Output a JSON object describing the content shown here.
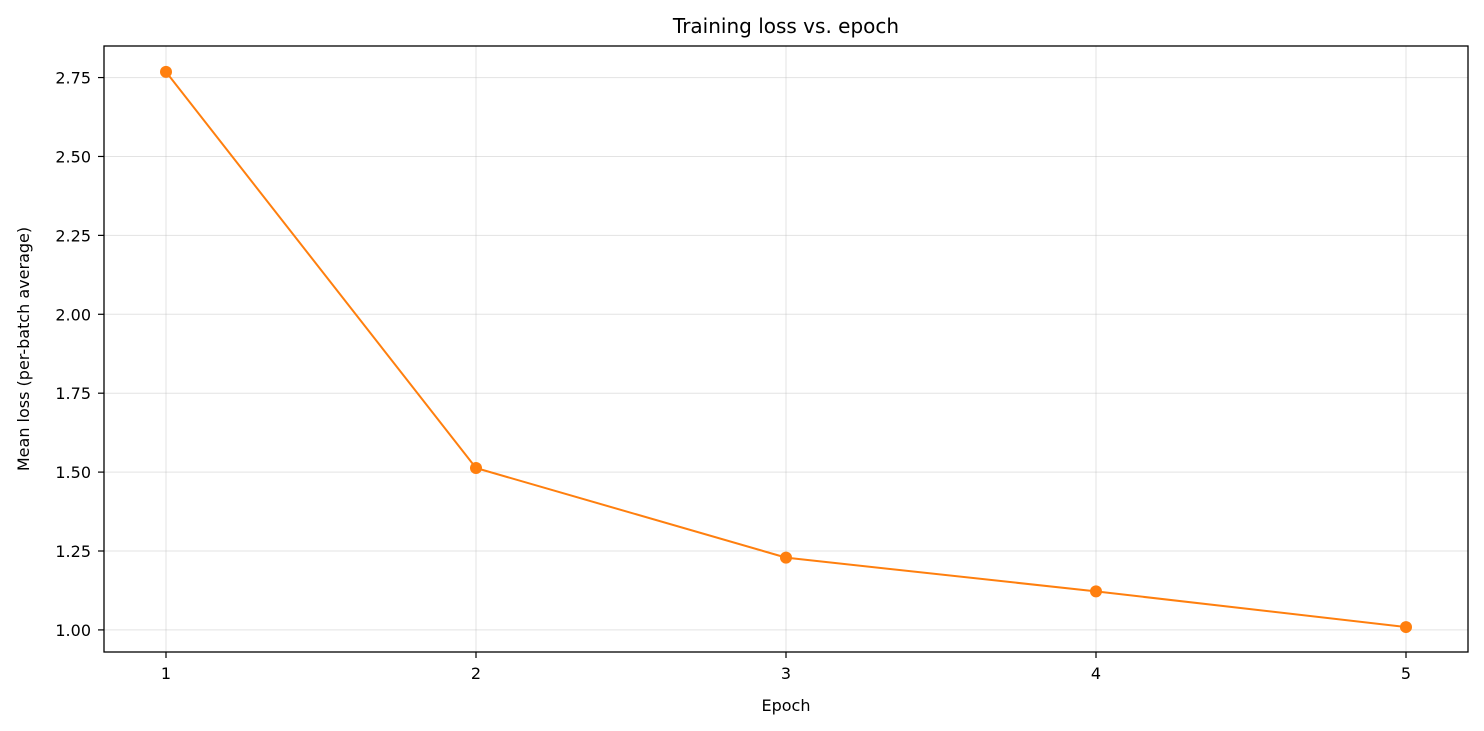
{
  "chart_data": {
    "type": "line",
    "title": "Training loss vs. epoch",
    "xlabel": "Epoch",
    "ylabel": "Mean loss (per-batch average)",
    "x": [
      1,
      2,
      3,
      4,
      5
    ],
    "series": [
      {
        "values": [
          2.768,
          1.513,
          1.229,
          1.122,
          1.009
        ],
        "color": "#ff7f0e",
        "marker": "circle"
      }
    ],
    "xlim": [
      0.8,
      5.2
    ],
    "ylim": [
      0.93,
      2.85
    ],
    "xticks": [
      "1",
      "2",
      "3",
      "4",
      "5"
    ],
    "yticks": [
      "1.00",
      "1.25",
      "1.50",
      "1.75",
      "2.00",
      "2.25",
      "2.50",
      "2.75"
    ],
    "grid": true,
    "legend": "none"
  }
}
